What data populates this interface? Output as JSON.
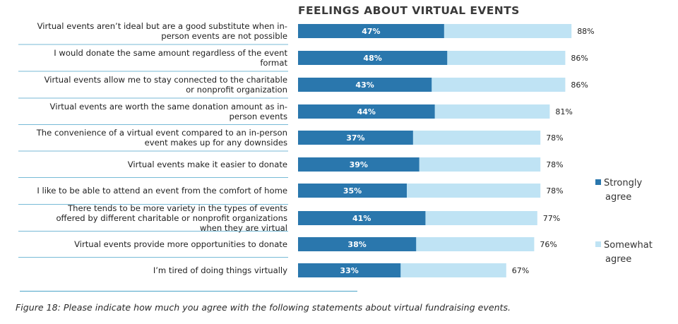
{
  "chart_data": {
    "type": "bar",
    "orientation": "horizontal",
    "stacked": false,
    "title": "FEELINGS ABOUT VIRTUAL EVENTS",
    "categories": [
      [
        "Virtual events aren’t ideal but are a good substitute when in-",
        "person events are not possible"
      ],
      [
        "I would donate the same amount regardless of the event",
        "format"
      ],
      [
        "Virtual events allow me to stay connected to the charitable",
        "or nonprofit organization"
      ],
      [
        "Virtual events are worth the same donation amount as in-",
        "person events"
      ],
      [
        "The convenience of a virtual event compared to an in-person",
        "event makes up for any downsides"
      ],
      [
        "Virtual events make it easier to donate"
      ],
      [
        "I like to be able to attend an event from the comfort of home"
      ],
      [
        "There tends to be more variety in the types of events",
        "offered by different charitable or nonprofit organizations",
        "when they are virtual"
      ],
      [
        "Virtual events provide more opportunities to donate"
      ],
      [
        "I’m tired of doing things virtually"
      ]
    ],
    "series": [
      {
        "name": "Strongly agree",
        "values": [
          47,
          48,
          43,
          44,
          37,
          39,
          35,
          41,
          38,
          33
        ],
        "labels": [
          "47%",
          "48%",
          "43%",
          "44%",
          "37%",
          "39%",
          "35%",
          "41%",
          "38%",
          "33%"
        ]
      },
      {
        "name": "Somewhat agree",
        "values": [
          88,
          86,
          86,
          81,
          78,
          78,
          78,
          77,
          76,
          67
        ],
        "labels": [
          "88%",
          "86%",
          "86%",
          "81%",
          "78%",
          "78%",
          "78%",
          "77%",
          "76%",
          "67%"
        ]
      }
    ],
    "xlim": [
      0,
      100
    ],
    "legend_position": "right",
    "grid": false
  },
  "legend": [
    {
      "line1": "Strongly",
      "line2": "agree"
    },
    {
      "line1": "Somewhat",
      "line2": "agree"
    }
  ],
  "colors": {
    "strongly": "#2a77ad",
    "somewhat": "#bfe3f4",
    "rule": "#4aa3c8"
  },
  "caption": "Figure 18: Please indicate how much you agree with the following statements about virtual fundraising events."
}
